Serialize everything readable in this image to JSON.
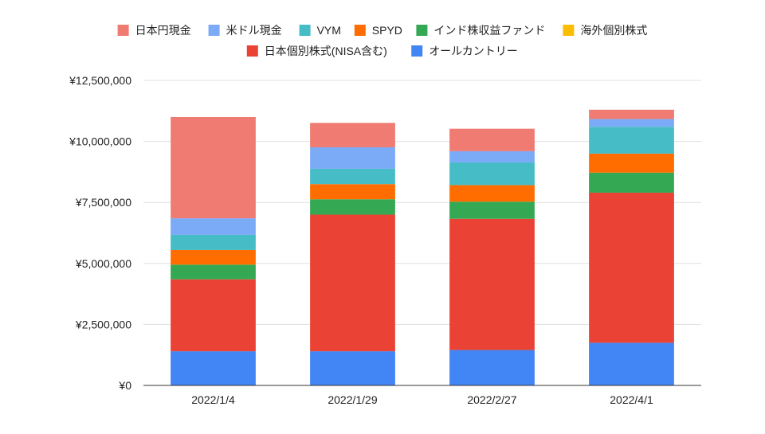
{
  "chart_data": {
    "type": "bar",
    "stacked": true,
    "categories": [
      "2022/1/4",
      "2022/1/29",
      "2022/2/27",
      "2022/4/1"
    ],
    "series": [
      {
        "name": "オールカントリー",
        "color": "#4285f4",
        "values": [
          1400000,
          1400000,
          1450000,
          1750000
        ]
      },
      {
        "name": "日本個別株式(NISA含む)",
        "color": "#ea4335",
        "values": [
          2950000,
          5600000,
          5380000,
          6150000
        ]
      },
      {
        "name": "海外個別株式",
        "color": "#fbbc04",
        "values": [
          0,
          0,
          0,
          0
        ]
      },
      {
        "name": "インド株収益ファンド",
        "color": "#34a853",
        "values": [
          600000,
          630000,
          700000,
          820000
        ]
      },
      {
        "name": "SPYD",
        "color": "#ff6d01",
        "values": [
          600000,
          620000,
          680000,
          780000
        ]
      },
      {
        "name": "VYM",
        "color": "#46bdc6",
        "values": [
          620000,
          630000,
          930000,
          1100000
        ]
      },
      {
        "name": "米ドル現金",
        "color": "#7baaf7",
        "values": [
          680000,
          880000,
          460000,
          320000
        ]
      },
      {
        "name": "日本円現金",
        "color": "#f07b72",
        "values": [
          4150000,
          1000000,
          920000,
          380000
        ]
      }
    ],
    "legend_order": [
      "日本円現金",
      "米ドル現金",
      "VYM",
      "SPYD",
      "インド株収益ファンド",
      "海外個別株式",
      "日本個別株式(NISA含む)",
      "オールカントリー"
    ],
    "y_ticks": [
      "¥0",
      "¥2,500,000",
      "¥5,000,000",
      "¥7,500,000",
      "¥10,000,000",
      "¥12,500,000"
    ],
    "ylim": [
      0,
      12500000
    ],
    "grid": true,
    "legend_position": "top"
  }
}
